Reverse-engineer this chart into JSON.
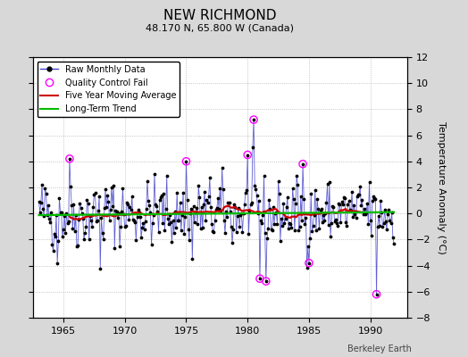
{
  "title": "NEW RICHMOND",
  "subtitle": "48.170 N, 65.800 W (Canada)",
  "ylabel": "Temperature Anomaly (°C)",
  "credit": "Berkeley Earth",
  "xlim": [
    1962.5,
    1993.0
  ],
  "ylim": [
    -8,
    12
  ],
  "yticks_right": [
    -8,
    -6,
    -4,
    -2,
    0,
    2,
    4,
    6,
    8,
    10,
    12
  ],
  "xticks": [
    1965,
    1970,
    1975,
    1980,
    1985,
    1990
  ],
  "background_color": "#d8d8d8",
  "plot_bg_color": "#ffffff",
  "raw_line_color": "#4444cc",
  "raw_marker_color": "#000000",
  "qc_fail_color": "#ff00ff",
  "moving_avg_color": "#cc0000",
  "trend_color": "#00bb00",
  "seed": 42,
  "n_months": 348,
  "start_year": 1963.0,
  "noise_std": 1.8
}
